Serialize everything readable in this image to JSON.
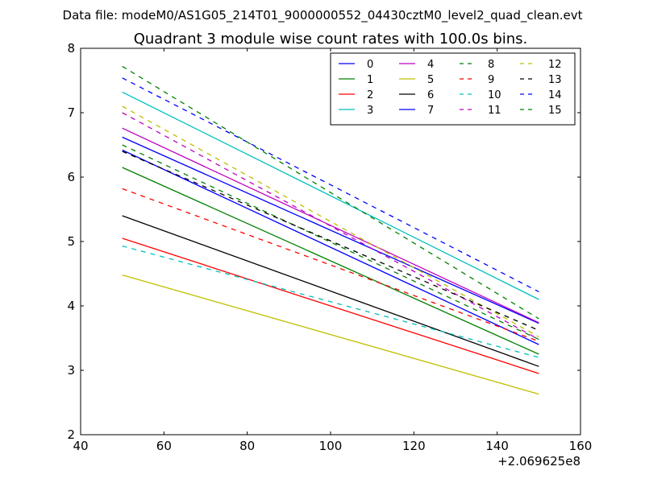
{
  "figure": {
    "suptitle": "Data file: modeM0/AS1G05_214T01_9000000552_04430cztM0_level2_quad_clean.evt"
  },
  "chart_data": {
    "type": "line",
    "title": "Quadrant 3 module wise count rates with 100.0s bins.",
    "xlabel": "",
    "ylabel": "",
    "x_offset_label": "+2.069625e8",
    "xlim": [
      40,
      160
    ],
    "ylim": [
      2,
      8
    ],
    "xticks": [
      40,
      60,
      80,
      100,
      120,
      140,
      160
    ],
    "xtick_labels": [
      "40",
      "60",
      "80",
      "100",
      "120",
      "140",
      "160"
    ],
    "yticks": [
      2,
      3,
      4,
      5,
      6,
      7,
      8
    ],
    "ytick_labels": [
      "2",
      "3",
      "4",
      "5",
      "6",
      "7",
      "8"
    ],
    "grid": false,
    "legend": {
      "placement": "top-right",
      "columns": 4
    },
    "x": [
      50,
      150
    ],
    "series": [
      {
        "name": "0",
        "values": [
          6.62,
          3.73
        ],
        "color": "#0000ff",
        "dash": "solid"
      },
      {
        "name": "1",
        "values": [
          6.15,
          3.25
        ],
        "color": "#008000",
        "dash": "solid"
      },
      {
        "name": "2",
        "values": [
          5.05,
          2.95
        ],
        "color": "#ff0000",
        "dash": "solid"
      },
      {
        "name": "3",
        "values": [
          7.32,
          4.1
        ],
        "color": "#00bfbf",
        "dash": "solid"
      },
      {
        "name": "4",
        "values": [
          6.76,
          3.74
        ],
        "color": "#bf00bf",
        "dash": "solid"
      },
      {
        "name": "5",
        "values": [
          4.48,
          2.63
        ],
        "color": "#bfbf00",
        "dash": "solid"
      },
      {
        "name": "6",
        "values": [
          5.4,
          3.06
        ],
        "color": "#000000",
        "dash": "solid"
      },
      {
        "name": "7",
        "values": [
          6.42,
          3.4
        ],
        "color": "#0000ff",
        "dash": "solid"
      },
      {
        "name": "8",
        "values": [
          6.5,
          3.48
        ],
        "color": "#008000",
        "dash": "dashed"
      },
      {
        "name": "9",
        "values": [
          5.82,
          3.45
        ],
        "color": "#ff0000",
        "dash": "dashed"
      },
      {
        "name": "10",
        "values": [
          4.93,
          3.2
        ],
        "color": "#00bfbf",
        "dash": "dashed"
      },
      {
        "name": "11",
        "values": [
          7.0,
          3.48
        ],
        "color": "#bf00bf",
        "dash": "dashed"
      },
      {
        "name": "12",
        "values": [
          7.1,
          3.52
        ],
        "color": "#bfbf00",
        "dash": "dashed"
      },
      {
        "name": "13",
        "values": [
          6.4,
          3.62
        ],
        "color": "#000000",
        "dash": "dashed"
      },
      {
        "name": "14",
        "values": [
          7.54,
          4.22
        ],
        "color": "#0000ff",
        "dash": "dashed"
      },
      {
        "name": "15",
        "values": [
          7.72,
          3.8
        ],
        "color": "#008000",
        "dash": "dashed"
      }
    ]
  }
}
